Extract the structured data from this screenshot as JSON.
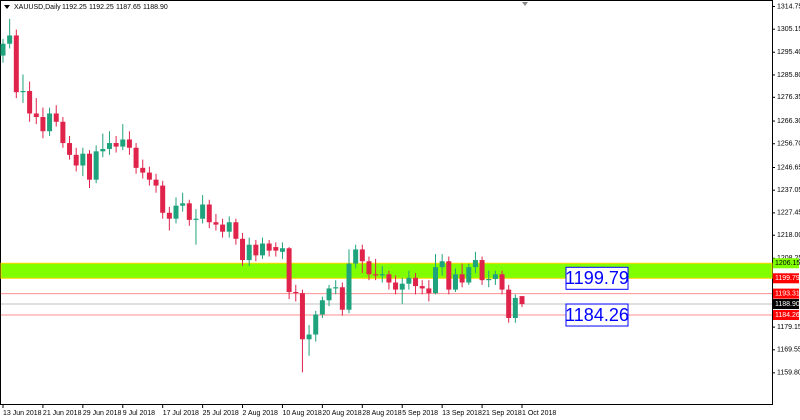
{
  "chart_data": {
    "type": "candlestick",
    "title": "XAUUSD,Daily",
    "header_ohlc": [
      "1192.25",
      "1192.25",
      "1187.65",
      "1188.90"
    ],
    "categories": [
      "13 Jun 2018",
      null,
      null,
      null,
      null,
      null,
      "21 Jun 2018",
      null,
      null,
      null,
      null,
      null,
      "29 Jun 2018",
      null,
      null,
      null,
      null,
      null,
      "9 Jul 2018",
      null,
      null,
      null,
      null,
      null,
      "17 Jul 2018",
      null,
      null,
      null,
      null,
      null,
      "25 Jul 2018",
      null,
      null,
      null,
      null,
      null,
      "2 Aug 2018",
      null,
      null,
      null,
      null,
      null,
      "10 Aug 2018",
      null,
      null,
      null,
      null,
      null,
      "20 Aug 2018",
      null,
      null,
      null,
      null,
      null,
      "28 Aug 2018",
      null,
      null,
      null,
      null,
      null,
      "5 Sep 2018",
      null,
      null,
      null,
      null,
      null,
      "13 Sep 2018",
      null,
      null,
      null,
      null,
      null,
      "21 Sep 2018",
      null,
      null,
      null,
      null,
      null,
      "1 Oct 2018"
    ],
    "open": [
      1294.0,
      1299.0,
      1302.5,
      1278.5,
      1279.0,
      1269.5,
      1268.0,
      1262.0,
      1269.5,
      1266.0,
      1257.0,
      1252.0,
      1247.5,
      1252.5,
      1241.5,
      1253.5,
      1254.5,
      1257.0,
      1255.5,
      1258.5,
      1255.0,
      1246.5,
      1244.5,
      1241.5,
      1239.0,
      1227.5,
      1225.0,
      1230.5,
      1231.5,
      1224.5,
      1225.0,
      1231.0,
      1223.5,
      1222.5,
      1219.5,
      1223.5,
      1216.5,
      1207.5,
      1214.0,
      1209.5,
      1214.5,
      1213.0,
      1211.0,
      1212.5,
      1194.0,
      1193.5,
      1174.0,
      1176.0,
      1184.5,
      1190.5,
      1195.5,
      1196.0,
      1186.5,
      1206.0,
      1212.0,
      1207.0,
      1201.5,
      1201.0,
      1201.5,
      1198.0,
      1195.0,
      1197.5,
      1200.0,
      1196.5,
      1195.5,
      1193.5,
      1204.5,
      1207.0,
      1195.0,
      1201.5,
      1198.0,
      1204.5,
      1207.5,
      1199.0,
      1199.5,
      1201.5,
      1195.0,
      1183.0,
      1192.25
    ],
    "high": [
      1301,
      1309.5,
      1305,
      1286,
      1283,
      1276,
      1272,
      1272,
      1273,
      1268,
      1260,
      1255,
      1255,
      1254,
      1256,
      1261,
      1262,
      1260,
      1265,
      1262,
      1257,
      1250,
      1247,
      1244,
      1241,
      1230,
      1234,
      1236,
      1233,
      1229,
      1235,
      1233,
      1227,
      1225,
      1226,
      1225,
      1219,
      1217,
      1216,
      1217,
      1216,
      1215,
      1215,
      1213,
      1197,
      1195,
      1180,
      1186,
      1192,
      1197,
      1199,
      1198,
      1212,
      1214,
      1214,
      1209,
      1208,
      1205,
      1203,
      1201,
      1200,
      1203,
      1202,
      1199,
      1199,
      1210,
      1210,
      1209,
      1204,
      1206,
      1206,
      1211,
      1209,
      1203,
      1203,
      1203,
      1197,
      1193,
      1192.25
    ],
    "low": [
      1291,
      1297,
      1276,
      1274,
      1266,
      1265,
      1259,
      1260,
      1264,
      1255,
      1250,
      1245,
      1243,
      1238,
      1240,
      1251,
      1252,
      1253,
      1254,
      1252,
      1244,
      1242,
      1239,
      1236,
      1225,
      1220,
      1223,
      1228,
      1222,
      1214,
      1223,
      1221,
      1220,
      1217,
      1217,
      1214,
      1205,
      1205,
      1207,
      1208,
      1209,
      1209,
      1208,
      1191,
      1190,
      1160,
      1167,
      1173,
      1183,
      1188,
      1193,
      1184,
      1185,
      1204,
      1202,
      1199,
      1199,
      1198,
      1195,
      1193,
      1189,
      1195,
      1193,
      1193,
      1190,
      1193,
      1201,
      1193,
      1194,
      1196,
      1197,
      1202,
      1197,
      1196,
      1197,
      1193,
      1181,
      1181,
      1187.65
    ],
    "close": [
      1299.0,
      1302.5,
      1278.5,
      1279.0,
      1269.5,
      1268.0,
      1262.0,
      1269.5,
      1266.0,
      1257.0,
      1252.0,
      1247.5,
      1252.5,
      1241.5,
      1253.5,
      1254.5,
      1257.0,
      1255.5,
      1258.5,
      1255.0,
      1246.5,
      1244.5,
      1241.5,
      1239.0,
      1227.5,
      1225.0,
      1230.5,
      1231.5,
      1224.5,
      1225.0,
      1231.0,
      1223.5,
      1222.5,
      1219.5,
      1223.5,
      1216.5,
      1207.5,
      1214.0,
      1209.5,
      1214.5,
      1211.5,
      1211.5,
      1212.5,
      1194.0,
      1193.5,
      1174.0,
      1176.0,
      1184.5,
      1190.5,
      1195.5,
      1196.0,
      1186.5,
      1206.0,
      1212.0,
      1207.0,
      1201.5,
      1201.0,
      1201.5,
      1198.0,
      1195.0,
      1197.5,
      1200.0,
      1196.5,
      1195.5,
      1193.5,
      1204.5,
      1207.0,
      1195.0,
      1201.5,
      1198.0,
      1204.5,
      1207.5,
      1199.0,
      1199.5,
      1201.5,
      1195.0,
      1183.0,
      1191.5,
      1188.9
    ],
    "up_color": "#1fa37c",
    "down_color": "#e0234a",
    "ylim": [
      1146.2,
      1317.5
    ],
    "yticks": [
      1314.75,
      1305.15,
      {
        "value": 1295.4,
        "label": "1295.40"
      },
      {
        "value": 1285.8,
        "label": "1285.80"
      },
      1276.35,
      {
        "value": 1266.3,
        "label": "1266.30"
      },
      {
        "value": 1256.7,
        "label": "1256.70"
      },
      1246.65,
      1237.05,
      1227.45,
      {
        "value": 1218,
        "label": "1218.00"
      },
      1208.25,
      1179.15,
      1169.55,
      {
        "value": 1159.8,
        "label": "1159.80"
      }
    ],
    "zone": {
      "low": 1199.79,
      "high": 1206.15,
      "color": "#80ff00"
    },
    "lines": [
      1193.31,
      1184.26
    ],
    "line_color": "#ff9090",
    "boxed_labels": [
      "chart_data.zone.low",
      "chart_data.lines.1"
    ]
  }
}
